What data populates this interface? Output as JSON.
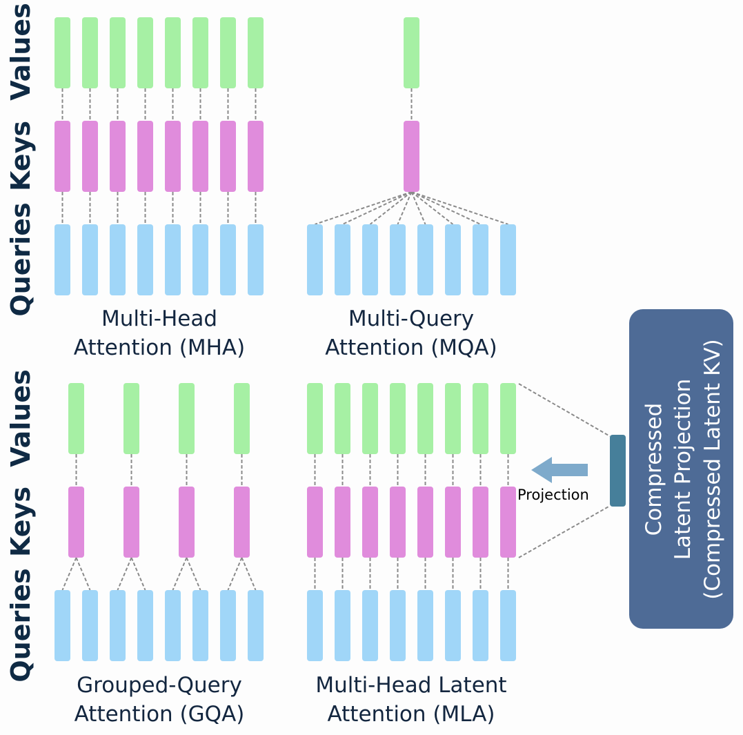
{
  "colors": {
    "values": "#a6f0a4",
    "keys": "#e08cdc",
    "queries": "#a0d6f8",
    "latent": "#467f9a",
    "arrow": "#7eaacb",
    "box": "#4e6b96",
    "line": "#8a8a8a"
  },
  "row_labels": {
    "values": "Values",
    "keys": "Keys",
    "queries": "Queries"
  },
  "panels": {
    "mha": {
      "title": [
        "Multi-Head",
        "Attention (MHA)"
      ],
      "queries": 8,
      "keys": 8,
      "values": 8
    },
    "mqa": {
      "title": [
        "Multi-Query",
        "Attention (MQA)"
      ],
      "queries": 8,
      "keys": 1,
      "values": 1
    },
    "gqa": {
      "title": [
        "Grouped-Query",
        "Attention (GQA)"
      ],
      "queries": 8,
      "keys": 4,
      "values": 4
    },
    "mla": {
      "title": [
        "Multi-Head Latent",
        "Attention (MLA)"
      ],
      "queries": 8,
      "keys": 8,
      "values": 8
    }
  },
  "projection_label": "Projection",
  "latent_box": {
    "lines": [
      "Compressed",
      "Latent Projection",
      "(Compressed Latent KV)"
    ]
  }
}
